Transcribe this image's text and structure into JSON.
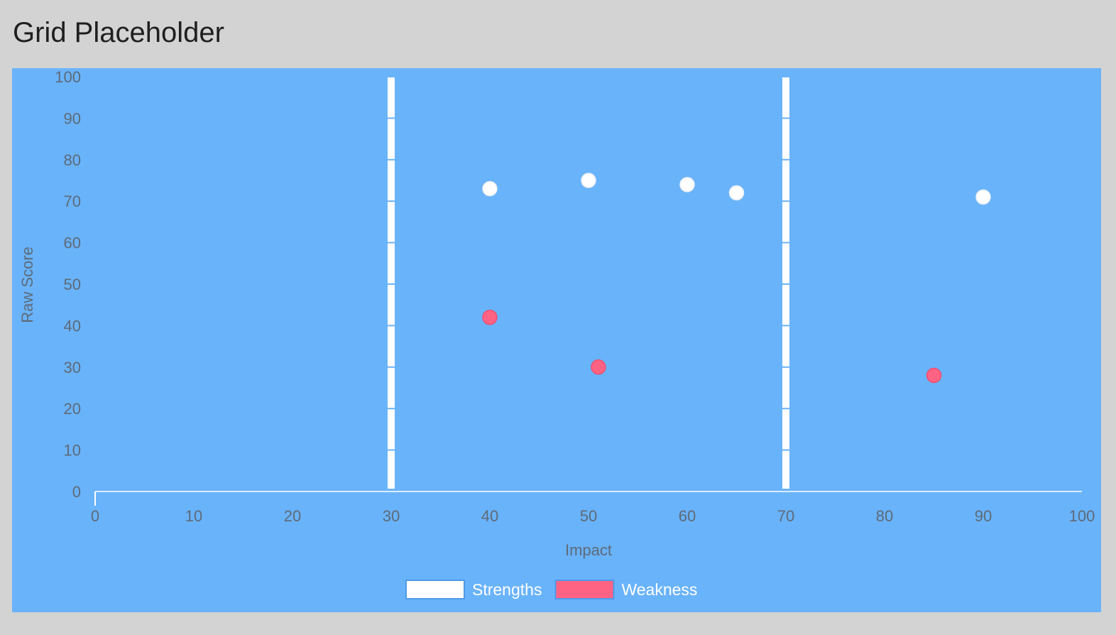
{
  "page": {
    "title": "Grid Placeholder"
  },
  "chart_data": {
    "type": "scatter",
    "xlabel": "Impact",
    "ylabel": "Raw Score",
    "xlim": [
      0,
      100
    ],
    "ylim": [
      0,
      100
    ],
    "x_ticks": [
      0,
      10,
      20,
      30,
      40,
      50,
      60,
      70,
      80,
      90,
      100
    ],
    "y_ticks": [
      0,
      10,
      20,
      30,
      40,
      50,
      60,
      70,
      80,
      90,
      100
    ],
    "grid": false,
    "legend_position": "bottom-center",
    "divider_lines_x": [
      30,
      70
    ],
    "series": [
      {
        "name": "Strengths",
        "color": "#ffffff",
        "points": [
          {
            "x": 40,
            "y": 73
          },
          {
            "x": 50,
            "y": 75
          },
          {
            "x": 60,
            "y": 74
          },
          {
            "x": 65,
            "y": 72
          },
          {
            "x": 90,
            "y": 71
          }
        ]
      },
      {
        "name": "Weakness",
        "color": "#ff6384",
        "points": [
          {
            "x": 40,
            "y": 42
          },
          {
            "x": 51,
            "y": 30
          },
          {
            "x": 85,
            "y": 28
          }
        ]
      }
    ],
    "colors": {
      "panel_background": "#69b3fa",
      "page_background": "#d3d3d3",
      "tick_text": "#5e6a78",
      "axis_line": "#ffffff",
      "divider": "#ffffff"
    }
  }
}
